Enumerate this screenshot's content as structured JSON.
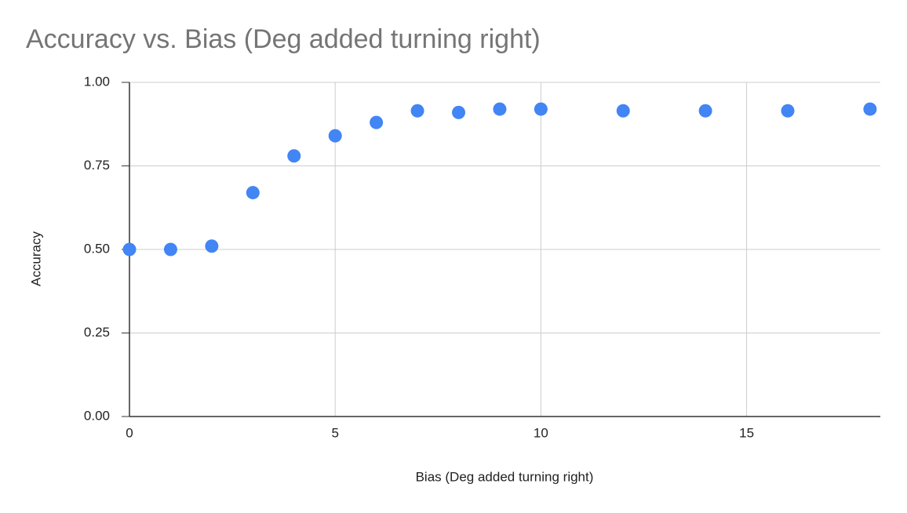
{
  "chart_data": {
    "type": "scatter",
    "title": "Accuracy vs. Bias (Deg added turning right)",
    "x_label": "Bias (Deg added turning right)",
    "y_label": "Accuracy",
    "series": [
      {
        "name": "Accuracy",
        "color": "#4285f4",
        "x": [
          0,
          1,
          2,
          3,
          4,
          5,
          6,
          7,
          8,
          9,
          10,
          12,
          14,
          16,
          18
        ],
        "values": [
          0.5,
          0.5,
          0.51,
          0.67,
          0.78,
          0.84,
          0.88,
          0.915,
          0.91,
          0.92,
          0.92,
          0.915,
          0.915,
          0.915,
          0.92
        ]
      }
    ],
    "xlim": [
      0,
      18.25
    ],
    "xticks": [
      0,
      5,
      10,
      15
    ],
    "ylim": [
      0,
      1
    ],
    "yticks": [
      {
        "value": 0,
        "label": "0.00"
      },
      {
        "value": 0.25,
        "label": "0.25"
      },
      {
        "value": 0.5,
        "label": "0.50"
      },
      {
        "value": 0.75,
        "label": "0.75"
      },
      {
        "value": 1,
        "label": "1.00"
      }
    ],
    "grid": true
  }
}
